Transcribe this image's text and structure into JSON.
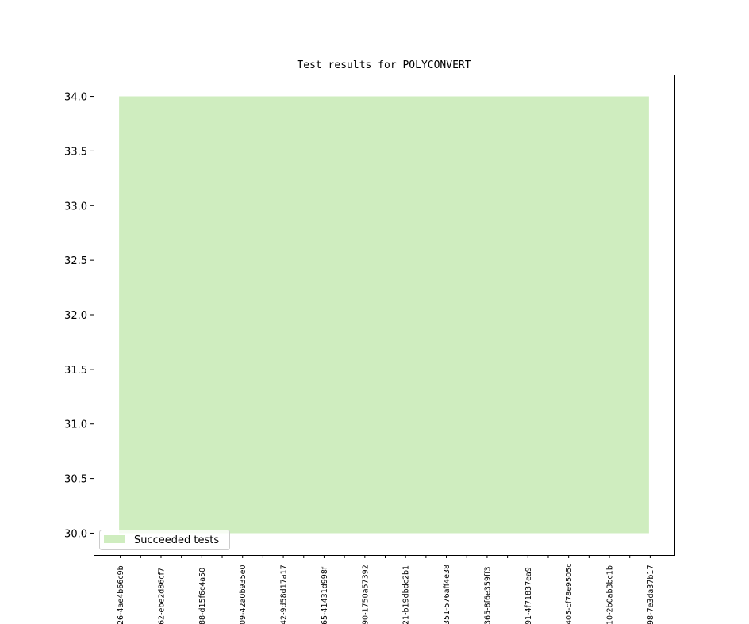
{
  "chart_data": {
    "type": "area",
    "title": "Test results for POLYCONVERT",
    "xlabel": "",
    "ylabel": "",
    "x_tick_labels": [
      "26-4ae4b66c9b",
      "62-ebe2d86cf7",
      "88-d15f6c4a50",
      "09-42a0b935e0",
      "42-9d58d17a17",
      "65-41431d998f",
      "90-1750a57392",
      "21-b19dbdc2b1",
      "351-576aff4e38",
      "365-8f6e359ff3",
      "91-4f71837ea9",
      "405-cf78e9505c",
      "10-2b0ab3bc1b",
      "98-7e3da37b17"
    ],
    "x_count": 27,
    "ylim": [
      29.8,
      34.2
    ],
    "y_ticks": [
      "30.0",
      "30.5",
      "31.0",
      "31.5",
      "32.0",
      "32.5",
      "33.0",
      "33.5",
      "34.0"
    ],
    "series": [
      {
        "name": "Succeeded tests",
        "color": "#cfedbf",
        "baseline": 30,
        "values": [
          34,
          34,
          34,
          34,
          34,
          34,
          34,
          34,
          34,
          34,
          34,
          34,
          34,
          34,
          34,
          34,
          34,
          34,
          34,
          34,
          34,
          34,
          34,
          34,
          34,
          34,
          34
        ]
      }
    ],
    "legend": {
      "placement": "lower-left"
    },
    "grid": false
  }
}
